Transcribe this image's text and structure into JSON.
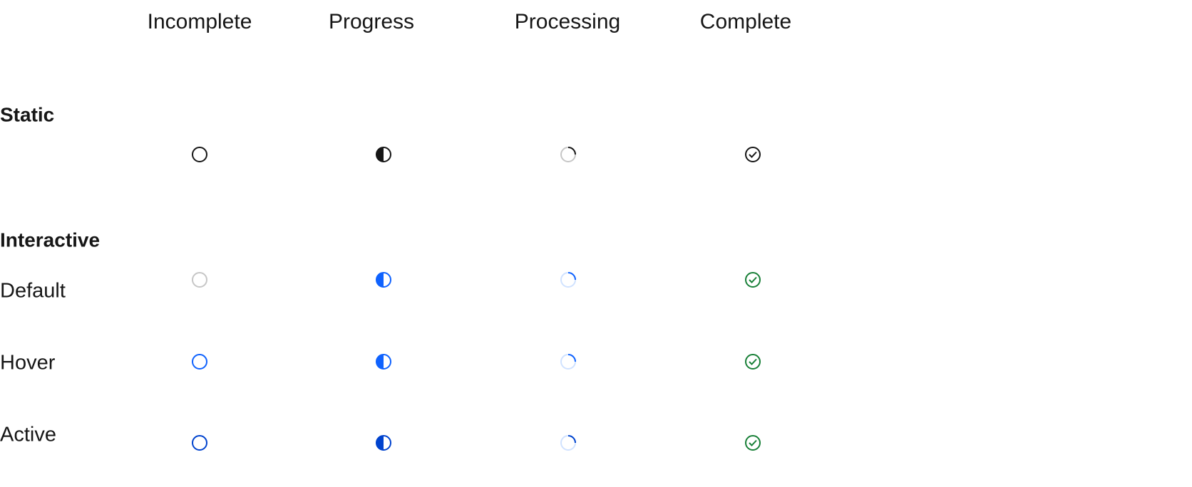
{
  "columns": [
    "Incomplete",
    "Progress",
    "Processing",
    "Complete"
  ],
  "sections": [
    {
      "title": "Static"
    },
    {
      "title": "Interactive",
      "rows": [
        "Default",
        "Hover",
        "Active"
      ]
    }
  ]
}
